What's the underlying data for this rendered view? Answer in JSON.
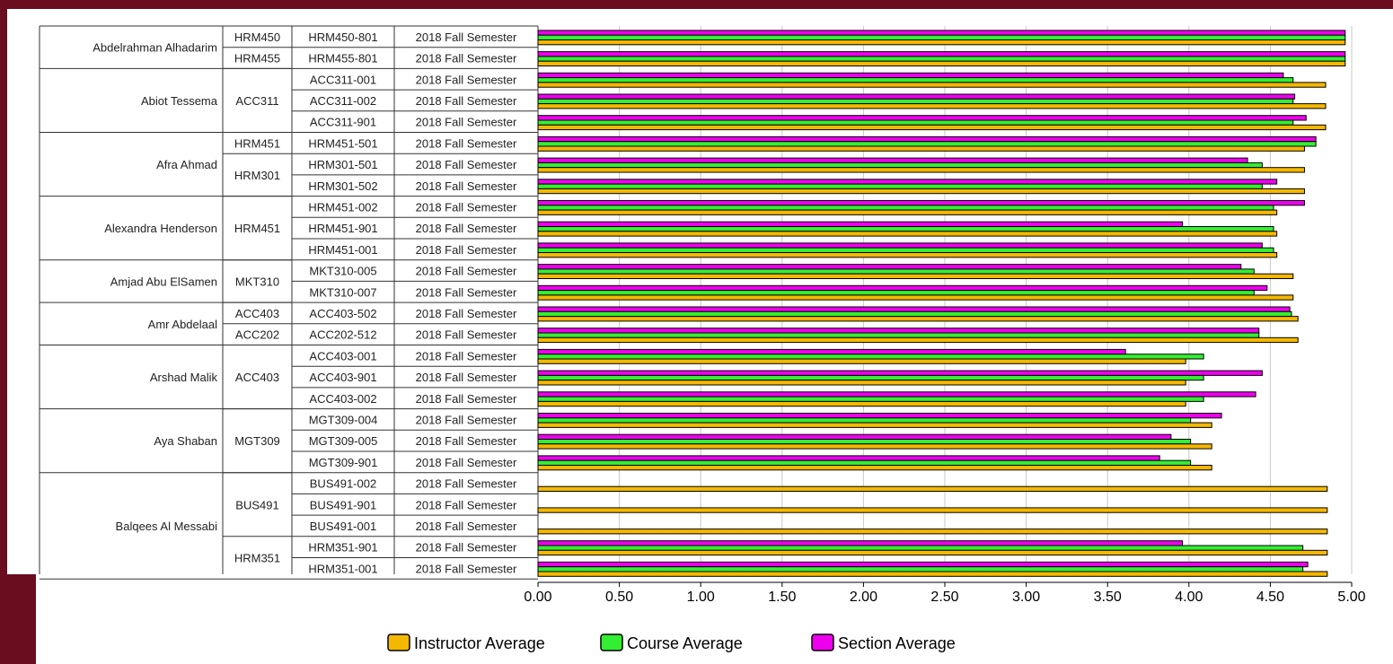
{
  "chart_data": {
    "type": "bar",
    "orientation": "horizontal",
    "xlim": [
      0,
      5
    ],
    "x_ticks": [
      "0.00",
      "0.50",
      "1.00",
      "1.50",
      "2.00",
      "2.50",
      "3.00",
      "3.50",
      "4.00",
      "4.50",
      "5.00"
    ],
    "grid": true,
    "legend_position": "bottom",
    "series": [
      {
        "name": "Instructor Average",
        "color": "#f5b800"
      },
      {
        "name": "Course Average",
        "color": "#33ee33"
      },
      {
        "name": "Section Average",
        "color": "#ee00ee"
      }
    ],
    "groups": [
      {
        "instructor": "Abdelrahman Alhadarim",
        "courses": [
          {
            "code": "HRM450",
            "sections": [
              {
                "id": "HRM450-801",
                "term": "2018 Fall Semester",
                "values": [
                  4.96,
                  4.96,
                  4.96
                ]
              }
            ]
          },
          {
            "code": "HRM455",
            "sections": [
              {
                "id": "HRM455-801",
                "term": "2018 Fall Semester",
                "values": [
                  4.96,
                  4.96,
                  4.96
                ]
              }
            ]
          }
        ]
      },
      {
        "instructor": "Abiot Tessema",
        "courses": [
          {
            "code": "ACC311",
            "sections": [
              {
                "id": "ACC311-001",
                "term": "2018 Fall Semester",
                "values": [
                  4.84,
                  4.64,
                  4.58
                ]
              },
              {
                "id": "ACC311-002",
                "term": "2018 Fall Semester",
                "values": [
                  4.84,
                  4.64,
                  4.65
                ]
              },
              {
                "id": "ACC311-901",
                "term": "2018 Fall Semester",
                "values": [
                  4.84,
                  4.64,
                  4.72
                ]
              }
            ]
          }
        ]
      },
      {
        "instructor": "Afra Ahmad",
        "courses": [
          {
            "code": "HRM451",
            "sections": [
              {
                "id": "HRM451-501",
                "term": "2018 Fall Semester",
                "values": [
                  4.71,
                  4.78,
                  4.78
                ]
              }
            ]
          },
          {
            "code": "HRM301",
            "sections": [
              {
                "id": "HRM301-501",
                "term": "2018 Fall Semester",
                "values": [
                  4.71,
                  4.45,
                  4.36
                ]
              },
              {
                "id": "HRM301-502",
                "term": "2018 Fall Semester",
                "values": [
                  4.71,
                  4.45,
                  4.54
                ]
              }
            ]
          }
        ]
      },
      {
        "instructor": "Alexandra Henderson",
        "courses": [
          {
            "code": "HRM451",
            "sections": [
              {
                "id": "HRM451-002",
                "term": "2018 Fall Semester",
                "values": [
                  4.54,
                  4.52,
                  4.71
                ]
              },
              {
                "id": "HRM451-901",
                "term": "2018 Fall Semester",
                "values": [
                  4.54,
                  4.52,
                  3.96
                ]
              },
              {
                "id": "HRM451-001",
                "term": "2018 Fall Semester",
                "values": [
                  4.54,
                  4.52,
                  4.45
                ]
              }
            ]
          }
        ]
      },
      {
        "instructor": "Amjad Abu ElSamen",
        "courses": [
          {
            "code": "MKT310",
            "sections": [
              {
                "id": "MKT310-005",
                "term": "2018 Fall Semester",
                "values": [
                  4.64,
                  4.4,
                  4.32
                ]
              },
              {
                "id": "MKT310-007",
                "term": "2018 Fall Semester",
                "values": [
                  4.64,
                  4.4,
                  4.48
                ]
              }
            ]
          }
        ]
      },
      {
        "instructor": "Amr Abdelaal",
        "courses": [
          {
            "code": "ACC403",
            "sections": [
              {
                "id": "ACC403-502",
                "term": "2018 Fall Semester",
                "values": [
                  4.67,
                  4.63,
                  4.62
                ]
              }
            ]
          },
          {
            "code": "ACC202",
            "sections": [
              {
                "id": "ACC202-512",
                "term": "2018 Fall Semester",
                "values": [
                  4.67,
                  4.43,
                  4.43
                ]
              }
            ]
          }
        ]
      },
      {
        "instructor": "Arshad Malik",
        "courses": [
          {
            "code": "ACC403",
            "sections": [
              {
                "id": "ACC403-001",
                "term": "2018 Fall Semester",
                "values": [
                  3.98,
                  4.09,
                  3.61
                ]
              },
              {
                "id": "ACC403-901",
                "term": "2018 Fall Semester",
                "values": [
                  3.98,
                  4.09,
                  4.45
                ]
              },
              {
                "id": "ACC403-002",
                "term": "2018 Fall Semester",
                "values": [
                  3.98,
                  4.09,
                  4.41
                ]
              }
            ]
          }
        ]
      },
      {
        "instructor": "Aya Shaban",
        "courses": [
          {
            "code": "MGT309",
            "sections": [
              {
                "id": "MGT309-004",
                "term": "2018 Fall Semester",
                "values": [
                  4.14,
                  4.01,
                  4.2
                ]
              },
              {
                "id": "MGT309-005",
                "term": "2018 Fall Semester",
                "values": [
                  4.14,
                  4.01,
                  3.89
                ]
              },
              {
                "id": "MGT309-901",
                "term": "2018 Fall Semester",
                "values": [
                  4.14,
                  4.01,
                  3.82
                ]
              }
            ]
          }
        ]
      },
      {
        "instructor": "Balqees Al Messabi",
        "courses": [
          {
            "code": "BUS491",
            "sections": [
              {
                "id": "BUS491-002",
                "term": "2018 Fall Semester",
                "values": [
                  4.85,
                  null,
                  null
                ]
              },
              {
                "id": "BUS491-901",
                "term": "2018 Fall Semester",
                "values": [
                  4.85,
                  null,
                  null
                ]
              },
              {
                "id": "BUS491-001",
                "term": "2018 Fall Semester",
                "values": [
                  4.85,
                  null,
                  null
                ]
              }
            ]
          },
          {
            "code": "HRM351",
            "sections": [
              {
                "id": "HRM351-901",
                "term": "2018 Fall Semester",
                "values": [
                  4.85,
                  4.7,
                  3.96
                ]
              },
              {
                "id": "HRM351-001",
                "term": "2018 Fall Semester",
                "values": [
                  4.85,
                  4.7,
                  4.73
                ]
              }
            ]
          }
        ]
      }
    ]
  }
}
